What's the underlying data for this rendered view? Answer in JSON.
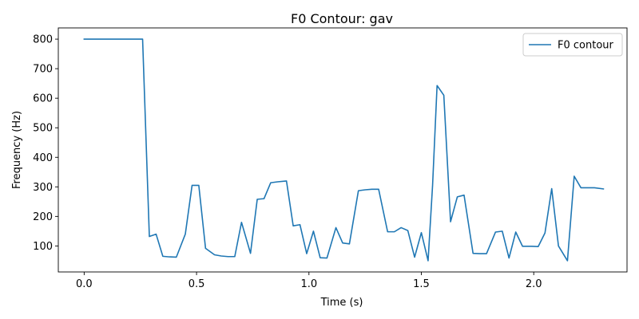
{
  "chart_data": {
    "type": "line",
    "title": "F0 Contour: gav",
    "xlabel": "Time (s)",
    "ylabel": "Frequency (Hz)",
    "xlim": [
      -0.115,
      2.415
    ],
    "ylim": [
      12,
      838
    ],
    "xticks": [
      0.0,
      0.5,
      1.0,
      1.5,
      2.0
    ],
    "xtick_labels": [
      "0.0",
      "0.5",
      "1.0",
      "1.5",
      "2.0"
    ],
    "yticks": [
      100,
      200,
      300,
      400,
      500,
      600,
      700,
      800
    ],
    "ytick_labels": [
      "100",
      "200",
      "300",
      "400",
      "500",
      "600",
      "700",
      "800"
    ],
    "grid": false,
    "legend": {
      "position": "top-right",
      "entries": [
        "F0 contour"
      ]
    },
    "series": [
      {
        "name": "F0 contour",
        "color": "#1f77b4",
        "x": [
          0.0,
          0.03,
          0.06,
          0.09,
          0.12,
          0.15,
          0.18,
          0.21,
          0.24,
          0.26,
          0.29,
          0.32,
          0.35,
          0.38,
          0.41,
          0.45,
          0.48,
          0.51,
          0.54,
          0.58,
          0.61,
          0.64,
          0.67,
          0.7,
          0.74,
          0.77,
          0.8,
          0.83,
          0.86,
          0.9,
          0.93,
          0.96,
          0.99,
          1.02,
          1.05,
          1.08,
          1.12,
          1.15,
          1.18,
          1.22,
          1.25,
          1.28,
          1.31,
          1.35,
          1.38,
          1.41,
          1.44,
          1.47,
          1.5,
          1.53,
          1.55,
          1.57,
          1.6,
          1.63,
          1.66,
          1.69,
          1.73,
          1.76,
          1.79,
          1.83,
          1.86,
          1.89,
          1.92,
          1.95,
          1.99,
          2.02,
          2.05,
          2.08,
          2.11,
          2.15,
          2.18,
          2.21,
          2.24,
          2.27,
          2.31
        ],
        "values": [
          800,
          800,
          800,
          800,
          800,
          800,
          800,
          800,
          800,
          800,
          132,
          140,
          65,
          63,
          62,
          140,
          305,
          305,
          92,
          70,
          66,
          64,
          64,
          180,
          75,
          258,
          260,
          314,
          317,
          320,
          168,
          172,
          74,
          150,
          60,
          59,
          162,
          110,
          107,
          287,
          290,
          292,
          292,
          148,
          148,
          162,
          152,
          62,
          145,
          50,
          305,
          643,
          610,
          182,
          266,
          272,
          75,
          74,
          74,
          147,
          150,
          59,
          147,
          99,
          99,
          98,
          144,
          294,
          100,
          50,
          336,
          297,
          297,
          297,
          293
        ]
      }
    ]
  }
}
